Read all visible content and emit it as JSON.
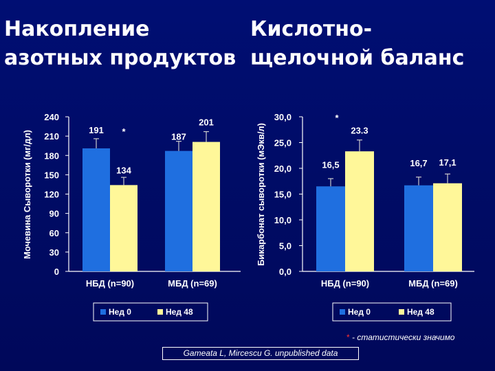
{
  "titles": {
    "left_line1": "Накопление",
    "left_line2": "азотных продуктов",
    "right_line1": "Кислотно-",
    "right_line2": "щелочной баланс"
  },
  "colors": {
    "series1": "#1f6fe0",
    "series2": "#fff799",
    "highlight": "#ff2020",
    "yellow_text": "#ffe000"
  },
  "footnote": {
    "star": "*",
    "text": " - статистически значимо"
  },
  "source": "Gameata L, Mircescu G. unpublished data",
  "chart_data": [
    {
      "type": "bar",
      "ylabel": "Мочевина Сыворотки (мг/дл)",
      "yticks": [
        "0",
        "30",
        "60",
        "90",
        "120",
        "150",
        "180",
        "210",
        "240"
      ],
      "ylim": [
        0,
        240
      ],
      "categories": [
        "НБД (n=90)",
        "МБД (n=69)"
      ],
      "series": [
        {
          "name": "Нед 0",
          "values": [
            191,
            187
          ],
          "labels": [
            "191",
            "187"
          ],
          "errors": [
            15,
            15
          ]
        },
        {
          "name": "Нед 48",
          "values": [
            134,
            201
          ],
          "labels": [
            "134",
            "201"
          ],
          "errors": [
            12,
            16
          ]
        }
      ],
      "annotations": [
        "*"
      ],
      "legend": "bottom"
    },
    {
      "type": "bar",
      "ylabel": "Бикарбонат сыворотки (мЭкв/л)",
      "yticks": [
        "0,0",
        "5,0",
        "10,0",
        "15,0",
        "20,0",
        "25,0",
        "30,0"
      ],
      "ylim": [
        0,
        30
      ],
      "categories": [
        "НБД (n=90)",
        "МБД (n=69)"
      ],
      "series": [
        {
          "name": "Нед 0",
          "values": [
            16.5,
            16.7
          ],
          "labels": [
            "16,5",
            "16,7"
          ],
          "errors": [
            1.5,
            1.6
          ]
        },
        {
          "name": "Нед 48",
          "values": [
            23.3,
            17.1
          ],
          "labels": [
            "23.3",
            "17,1"
          ],
          "errors": [
            2.2,
            1.8
          ]
        }
      ],
      "annotations": [
        "*"
      ],
      "legend": "bottom"
    }
  ]
}
